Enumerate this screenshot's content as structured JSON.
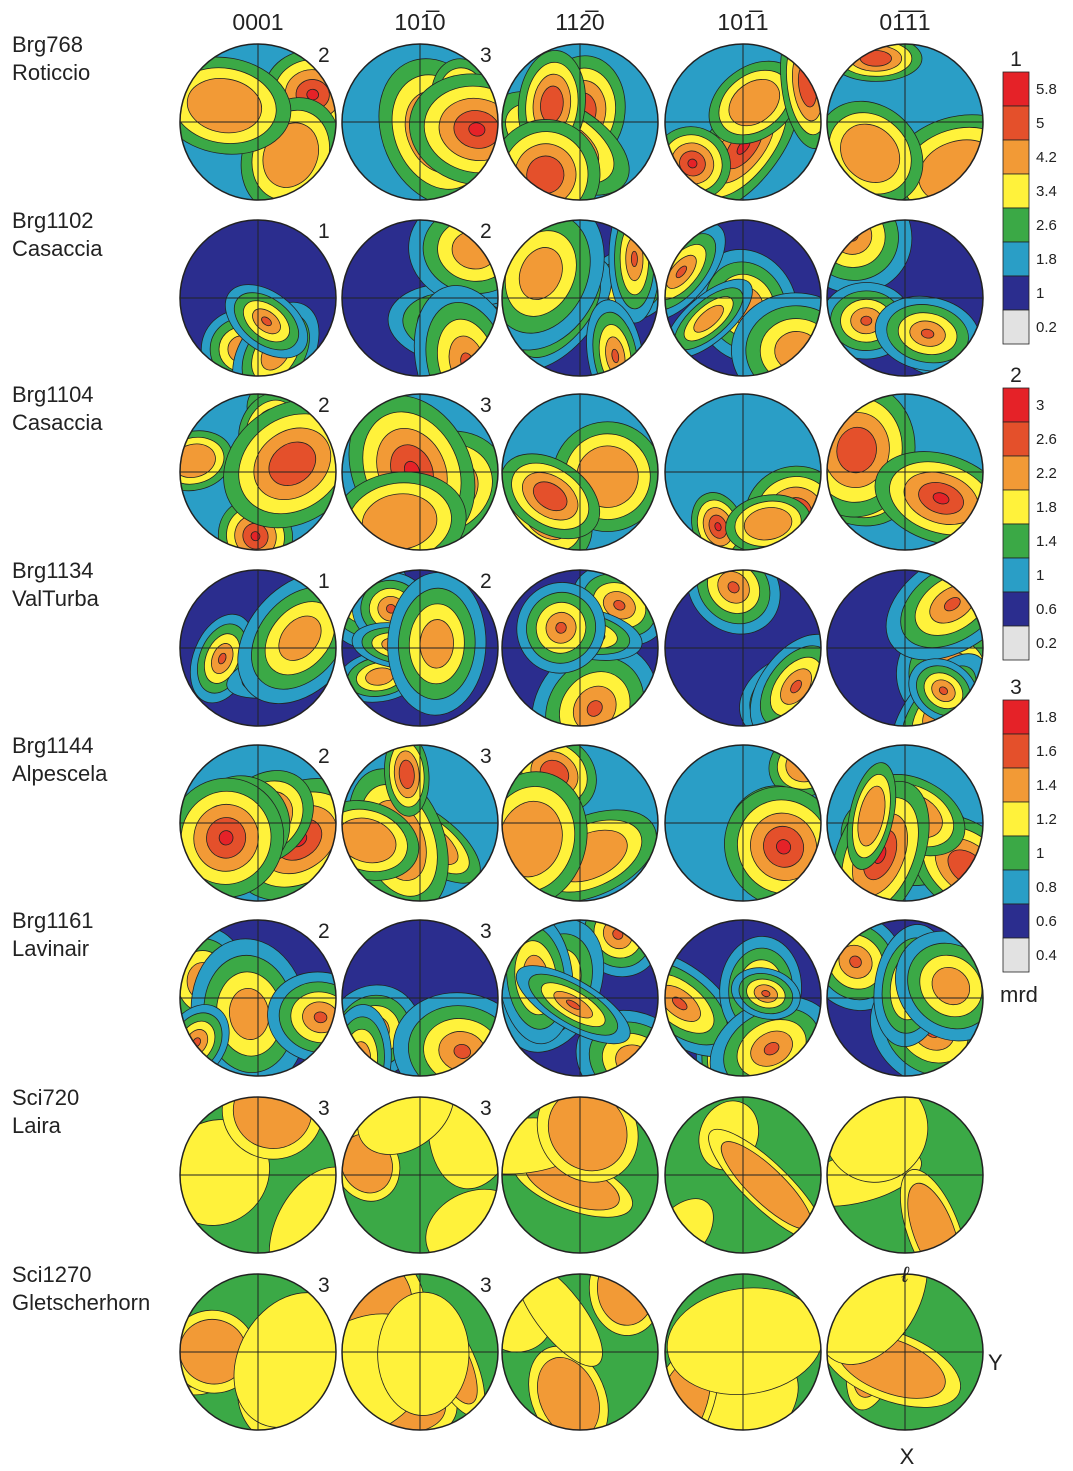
{
  "columns": [
    "0001",
    "101̅0",
    "112̅0",
    "101̅1",
    "01̅1̅1"
  ],
  "rows": [
    {
      "sample": "Brg768",
      "locality": "Roticcio",
      "scales": [
        2,
        3
      ]
    },
    {
      "sample": "Brg1102",
      "locality": "Casaccia",
      "scales": [
        1,
        2
      ]
    },
    {
      "sample": "Brg1104",
      "locality": "Casaccia",
      "scales": [
        2,
        3
      ]
    },
    {
      "sample": "Brg1134",
      "locality": "ValTurba",
      "scales": [
        1,
        2
      ]
    },
    {
      "sample": "Brg1144",
      "locality": "Alpescela",
      "scales": [
        2,
        3
      ]
    },
    {
      "sample": "Brg1161",
      "locality": "Lavinair",
      "scales": [
        2,
        3
      ]
    },
    {
      "sample": "Sci720",
      "locality": "Laira",
      "scales": [
        3,
        3
      ]
    },
    {
      "sample": "Sci1270",
      "locality": "Gletscherhorn",
      "scales": [
        3,
        3
      ]
    }
  ],
  "legends": [
    {
      "label": 1,
      "values": [
        5.8,
        5,
        4.2,
        3.4,
        2.6,
        1.8,
        1,
        0.2
      ]
    },
    {
      "label": 2,
      "values": [
        3,
        2.6,
        2.2,
        1.8,
        1.4,
        1,
        0.6,
        0.2
      ]
    },
    {
      "label": 3,
      "values": [
        1.8,
        1.6,
        1.4,
        1.2,
        1,
        0.8,
        0.6,
        0.4
      ]
    }
  ],
  "unit": "mrd",
  "axes": {
    "top": "ℓ",
    "right": "Y",
    "bottom": "X"
  }
}
